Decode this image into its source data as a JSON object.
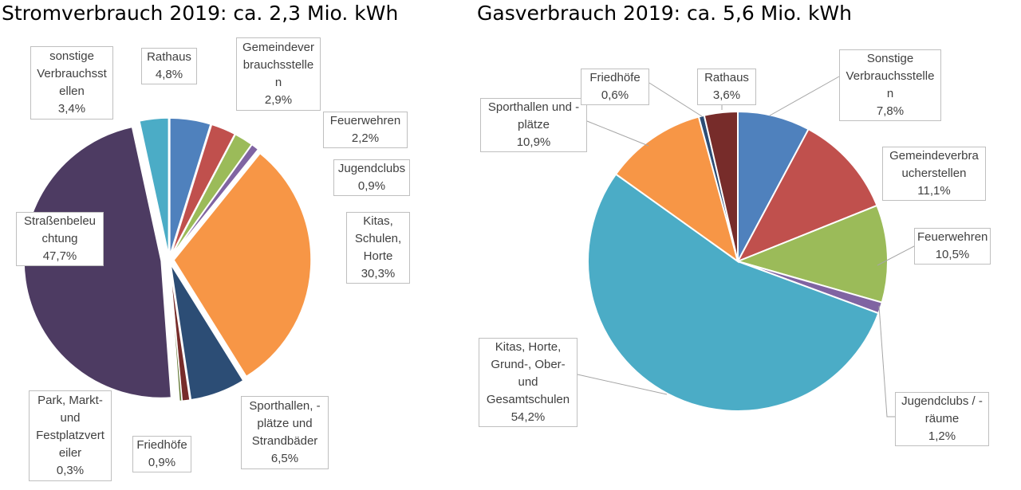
{
  "chart_data": [
    {
      "type": "pie",
      "title": "Stromverbrauch 2019: ca. 2,3 Mio. kWh",
      "slices": [
        {
          "label": "Rathaus",
          "value": 4.8,
          "value_label": "4,8%",
          "color": "#4f81bd"
        },
        {
          "label": "Gemeindever\nbrauchsstelle\nn",
          "value": 2.9,
          "value_label": "2,9%",
          "color": "#c0504d"
        },
        {
          "label": "Feuerwehren",
          "value": 2.2,
          "value_label": "2,2%",
          "color": "#9bbb59"
        },
        {
          "label": "Jugendclubs",
          "value": 0.9,
          "value_label": "0,9%",
          "color": "#8064a2"
        },
        {
          "label": "Kitas,\nSchulen,\nHorte",
          "value": 30.3,
          "value_label": "30,3%",
          "color": "#f79646"
        },
        {
          "label": "Sporthallen, -\nplätze und\nStrandbäder",
          "value": 6.5,
          "value_label": "6,5%",
          "color": "#2c4d75"
        },
        {
          "label": "Friedhöfe",
          "value": 0.9,
          "value_label": "0,9%",
          "color": "#772c2a"
        },
        {
          "label": "Park, Markt-\nund\nFestplatzvert\neiler",
          "value": 0.3,
          "value_label": "0,3%",
          "color": "#5f7530"
        },
        {
          "label": "Straßenbeleu\nchtung",
          "value": 47.7,
          "value_label": "47,7%",
          "color": "#4d3b62"
        },
        {
          "label": "sonstige\nVerbrauchsst\nellen",
          "value": 3.4,
          "value_label": "3,4%",
          "color": "#4bacc6"
        }
      ]
    },
    {
      "type": "pie",
      "title": "Gasverbrauch 2019: ca. 5,6 Mio. kWh",
      "slices": [
        {
          "label": "Sonstige\nVerbrauchsstelle\nn",
          "value": 7.8,
          "value_label": "7,8%",
          "color": "#4f81bd"
        },
        {
          "label": "Gemeindeverbra\nucherstellen",
          "value": 11.1,
          "value_label": "11,1%",
          "color": "#c0504d"
        },
        {
          "label": "Feuerwehren",
          "value": 10.5,
          "value_label": "10,5%",
          "color": "#9bbb59"
        },
        {
          "label": "Jugendclubs / -\nräume",
          "value": 1.2,
          "value_label": "1,2%",
          "color": "#8064a2"
        },
        {
          "label": "Kitas, Horte,\nGrund-, Ober-\nund\nGesamtschulen",
          "value": 54.2,
          "value_label": "54,2%",
          "color": "#4bacc6"
        },
        {
          "label": "Sporthallen und -\nplätze",
          "value": 10.9,
          "value_label": "10,9%",
          "color": "#f79646"
        },
        {
          "label": "Friedhöfe",
          "value": 0.6,
          "value_label": "0,6%",
          "color": "#2c4d75"
        },
        {
          "label": "Rathaus",
          "value": 3.6,
          "value_label": "3,6%",
          "color": "#772c2a"
        }
      ]
    }
  ]
}
